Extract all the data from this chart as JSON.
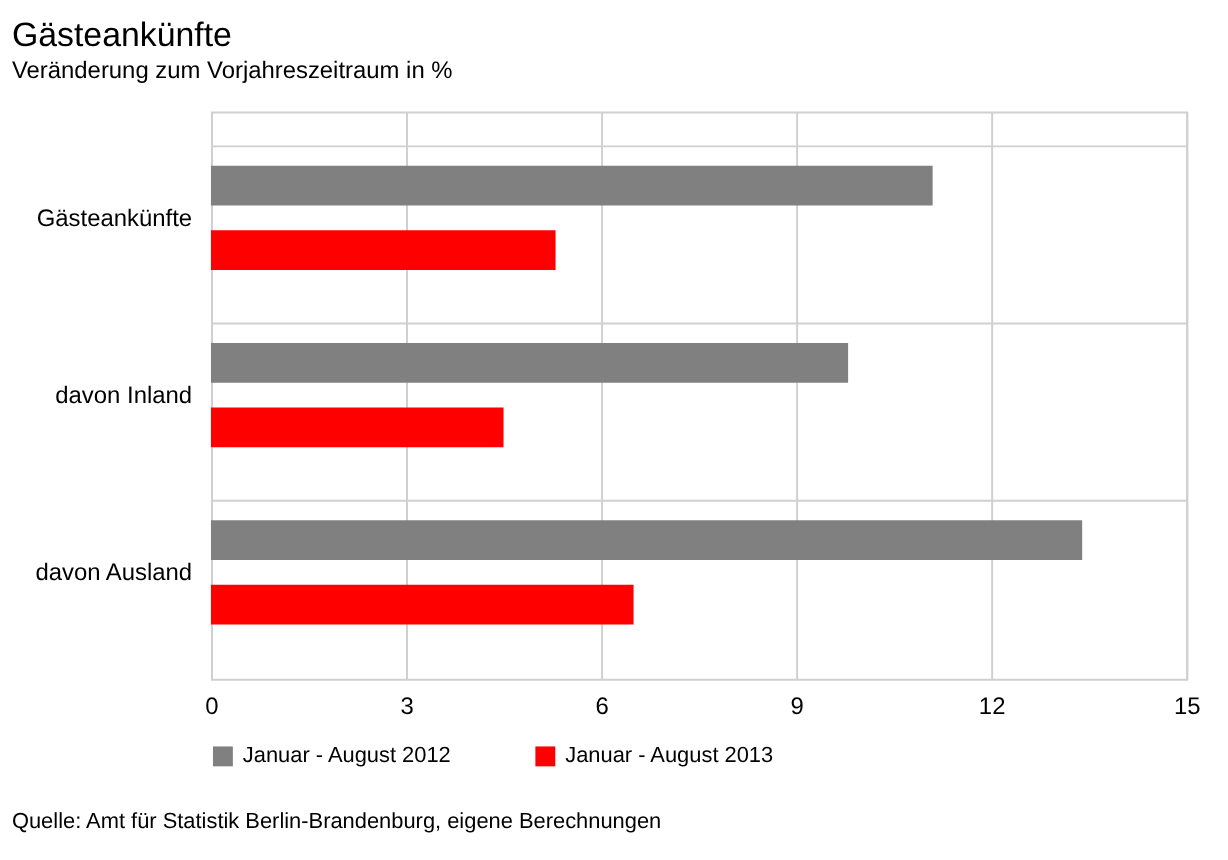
{
  "chart_data": {
    "type": "bar",
    "orientation": "horizontal",
    "title": "Gästeankünfte",
    "subtitle": "Veränderung zum Vorjahreszeitraum  in %",
    "categories": [
      "Gästeankünfte",
      "davon Inland",
      "davon Ausland"
    ],
    "series": [
      {
        "name": "Januar - August 2012",
        "color": "#808080",
        "values": [
          11.1,
          9.8,
          13.4
        ]
      },
      {
        "name": "Januar - August 2013",
        "color": "#ff0000",
        "values": [
          5.3,
          4.5,
          6.5
        ]
      }
    ],
    "xlim": [
      0,
      15
    ],
    "xticks": [
      0,
      3,
      6,
      9,
      12,
      15
    ],
    "grid": true,
    "legend": "bottom",
    "annotations": [
      "Quelle: Amt für Statistik Berlin-Brandenburg, eigene Berechnungen"
    ]
  }
}
